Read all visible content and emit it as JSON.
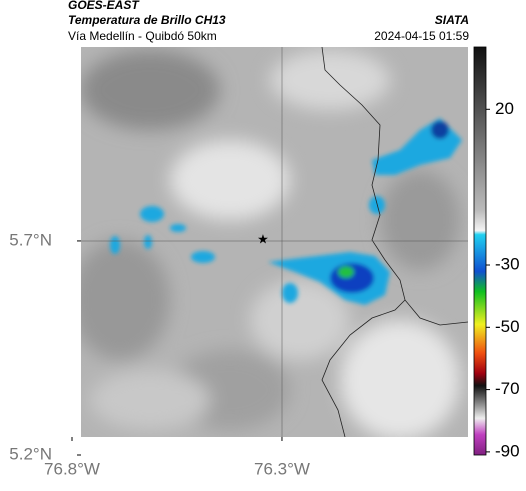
{
  "header": {
    "source": "GOES-EAST",
    "title": "Temperatura de Brillo CH13",
    "subtitle": "Vía Medellín - Quibdó 50km",
    "brand": "SIATA",
    "timestamp": "2024-04-15 01:59"
  },
  "map": {
    "xlim": [
      -76.8,
      -75.857
    ],
    "ylim": [
      5.2,
      6.153
    ],
    "xticks": [
      {
        "value": -76.8,
        "label": "76.8°W"
      },
      {
        "value": -76.3,
        "label": "76.3°W"
      }
    ],
    "yticks": [
      {
        "value": 5.2,
        "label": "5.2°N"
      },
      {
        "value": 5.7,
        "label": "5.7°N"
      }
    ],
    "colorbar": {
      "lim": [
        40,
        -91
      ],
      "ticks": [
        20,
        -30,
        -50,
        -70,
        -90
      ]
    }
  }
}
